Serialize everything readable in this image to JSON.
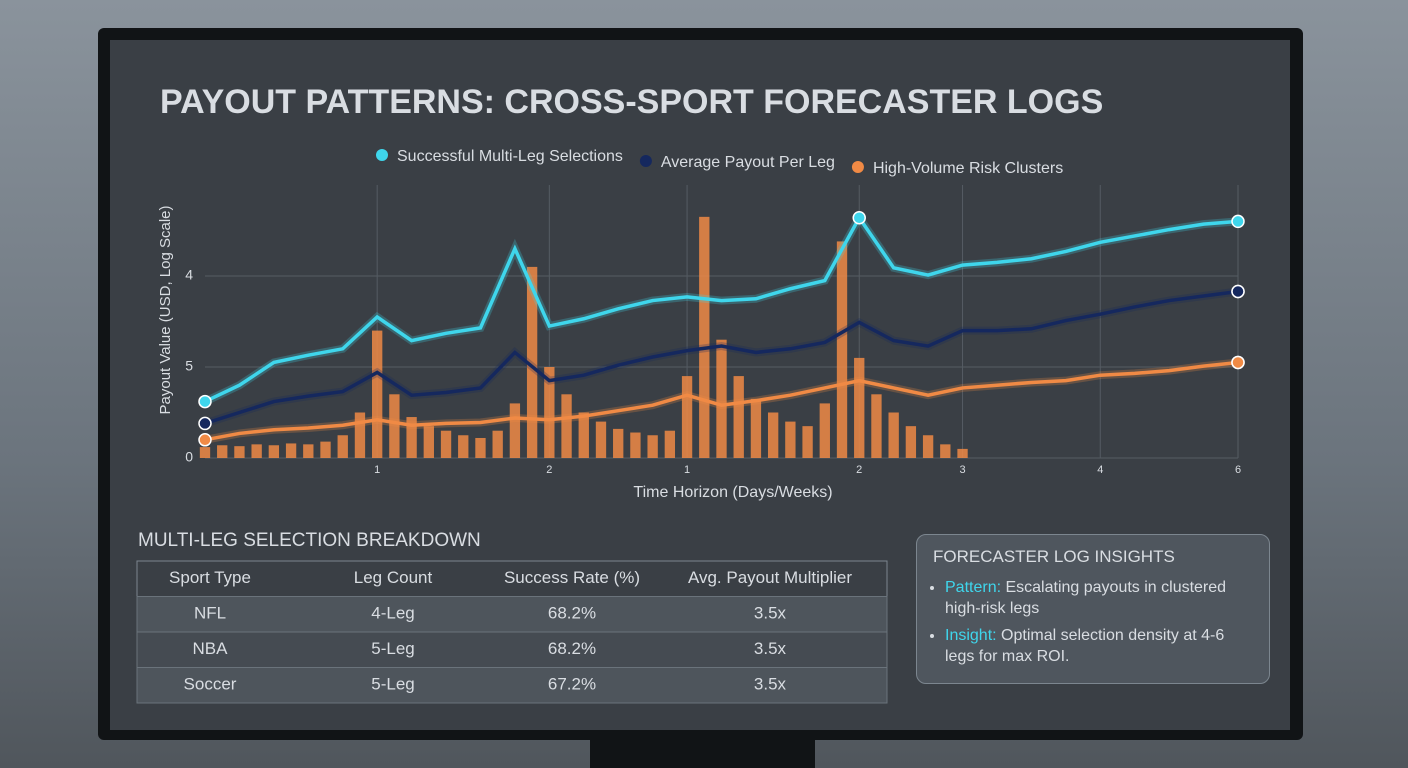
{
  "chart_data": {
    "type": "line",
    "title": "PAYOUT PATTERNS: CROSS-SPORT FORECASTER LOGS",
    "y_label": "Payout Value (USD, Log Scale)",
    "x_label": "Time Horizon (Days/Weeks)",
    "categories": [
      null,
      null,
      null,
      null,
      null,
      "1",
      null,
      null,
      null,
      null,
      "2",
      null,
      null,
      null,
      "1",
      null,
      null,
      null,
      null,
      "2",
      null,
      null,
      "3",
      null,
      null,
      null,
      "4",
      null,
      null,
      null,
      "6"
    ],
    "ylim": [
      0,
      3
    ],
    "yticks": [
      0,
      {
        "value": 1,
        "label": "5"
      },
      {
        "value": 2,
        "label": "4"
      }
    ],
    "grid": true,
    "series": [
      {
        "name": "Successful Multi-Leg Selections",
        "color": "#3fd6ec",
        "values": [
          0.62,
          0.8,
          1.05,
          1.13,
          1.2,
          1.55,
          1.29,
          1.37,
          1.43,
          2.3,
          1.45,
          1.53,
          1.64,
          1.73,
          1.77,
          1.73,
          1.75,
          1.86,
          1.95,
          2.64,
          2.09,
          2.01,
          2.12,
          2.15,
          2.19,
          2.27,
          2.37,
          2.44,
          2.51,
          2.57,
          2.6
        ]
      },
      {
        "name": "Average Payout Per Leg",
        "color": "#15285e",
        "values": [
          0.38,
          0.5,
          0.62,
          0.68,
          0.73,
          0.94,
          0.69,
          0.72,
          0.77,
          1.16,
          0.85,
          0.91,
          1.02,
          1.11,
          1.18,
          1.23,
          1.16,
          1.2,
          1.27,
          1.49,
          1.29,
          1.23,
          1.4,
          1.4,
          1.42,
          1.51,
          1.58,
          1.66,
          1.73,
          1.78,
          1.83
        ]
      },
      {
        "name": "High-Volume Risk Clusters",
        "color": "#f08a45",
        "values": [
          0.2,
          0.27,
          0.31,
          0.33,
          0.36,
          0.42,
          0.36,
          0.38,
          0.39,
          0.44,
          0.42,
          0.46,
          0.52,
          0.58,
          0.69,
          0.58,
          0.63,
          0.69,
          0.77,
          0.85,
          0.77,
          0.69,
          0.77,
          0.8,
          0.83,
          0.85,
          0.91,
          0.93,
          0.96,
          1.01,
          1.05
        ]
      }
    ],
    "clusters": {
      "color": "#f08a45",
      "values": [
        0.12,
        0.14,
        0.13,
        0.15,
        0.14,
        0.16,
        0.15,
        0.18,
        0.25,
        0.5,
        1.4,
        0.7,
        0.45,
        0.35,
        0.3,
        0.25,
        0.22,
        0.3,
        0.6,
        2.1,
        1.0,
        0.7,
        0.5,
        0.4,
        0.32,
        0.28,
        0.25,
        0.3,
        0.9,
        2.65,
        1.3,
        0.9,
        0.65,
        0.5,
        0.4,
        0.35,
        0.6,
        2.38,
        1.1,
        0.7,
        0.5,
        0.35,
        0.25,
        0.15,
        0.1
      ]
    }
  },
  "table": {
    "title": "MULTI-LEG SELECTION BREAKDOWN",
    "header": [
      "Sport Type",
      "Leg Count",
      "Success Rate (%)",
      "Avg. Payout Multiplier"
    ],
    "rows": [
      [
        "NFL",
        "4-Leg",
        "68.2%",
        "3.5x"
      ],
      [
        "NBA",
        "5-Leg",
        "68.2%",
        "3.5x"
      ],
      [
        "Soccer",
        "5-Leg",
        "67.2%",
        "3.5x"
      ]
    ]
  },
  "insights": {
    "title": "FORECASTER LOG INSIGHTS",
    "items": [
      {
        "label": "Pattern:",
        "text": "Escalating payouts in clustered high-risk legs"
      },
      {
        "label": "Insight:",
        "text": "Optimal selection density at 4-6 legs for max ROI."
      }
    ]
  }
}
